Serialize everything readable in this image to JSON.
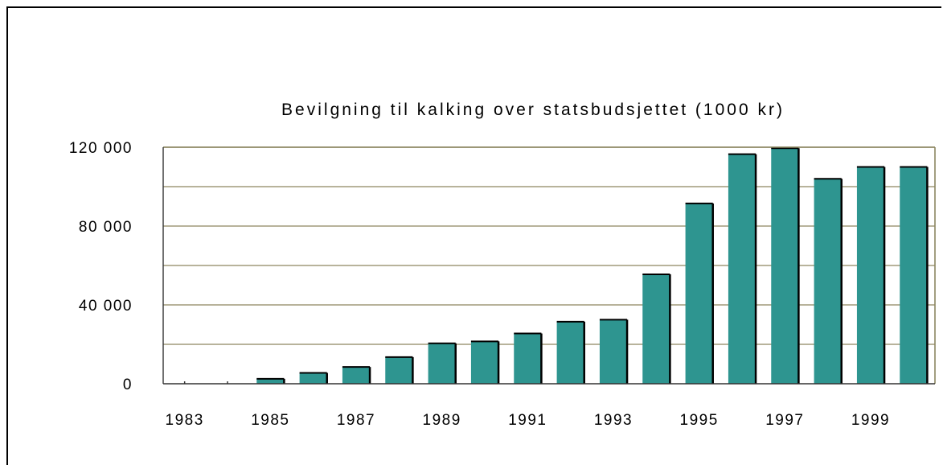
{
  "chart_data": {
    "type": "bar",
    "title": "Bevilgning til kalking over statsbudsjettet (1000 kr)",
    "xlabel": "",
    "ylabel": "",
    "categories": [
      "1983",
      "1984",
      "1985",
      "1986",
      "1987",
      "1988",
      "1989",
      "1990",
      "1991",
      "1992",
      "1993",
      "1994",
      "1995",
      "1996",
      "1997",
      "1998",
      "1999",
      "2000"
    ],
    "x_tick_labels": [
      "1983",
      "1985",
      "1987",
      "1989",
      "1991",
      "1993",
      "1995",
      "1997",
      "1999"
    ],
    "values": [
      0,
      0,
      2500,
      5500,
      8500,
      13500,
      20500,
      21500,
      25500,
      31500,
      32500,
      55500,
      91500,
      116500,
      119500,
      104000,
      110000,
      110000
    ],
    "ylim": [
      0,
      120000
    ],
    "y_ticks": [
      0,
      40000,
      80000,
      120000
    ],
    "y_tick_labels": [
      "0",
      "40 000",
      "80 000",
      "120 000"
    ],
    "grid": true,
    "colors": {
      "bar": "#2e9590",
      "bar_edge": "#000000",
      "grid": "#a09a7a",
      "plot_border": "#8b8560"
    }
  }
}
